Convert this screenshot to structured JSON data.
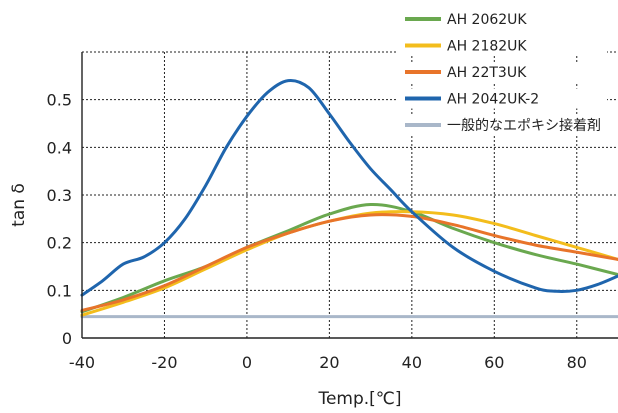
{
  "chart_data": {
    "type": "line",
    "title": "",
    "xlabel": "Temp.[℃]",
    "ylabel": "tan δ",
    "xlim": [
      -40,
      90
    ],
    "ylim": [
      0,
      0.6
    ],
    "x_ticks": [
      "-40",
      "-20",
      "0",
      "20",
      "40",
      "60",
      "80"
    ],
    "y_ticks": [
      "0",
      "0.1",
      "0.2",
      "0.3",
      "0.4",
      "0.5"
    ],
    "grid": true,
    "legend_position": "top-right",
    "series": [
      {
        "name": "AH 2062UK",
        "color": "#6aa84f",
        "points": [
          [
            -40,
            0.055
          ],
          [
            -30,
            0.085
          ],
          [
            -20,
            0.12
          ],
          [
            -10,
            0.15
          ],
          [
            0,
            0.19
          ],
          [
            10,
            0.225
          ],
          [
            20,
            0.26
          ],
          [
            30,
            0.28
          ],
          [
            40,
            0.265
          ],
          [
            50,
            0.23
          ],
          [
            60,
            0.2
          ],
          [
            70,
            0.175
          ],
          [
            80,
            0.155
          ],
          [
            90,
            0.133
          ]
        ]
      },
      {
        "name": "AH 2182UK",
        "color": "#f3bd1c",
        "points": [
          [
            -40,
            0.048
          ],
          [
            -30,
            0.075
          ],
          [
            -20,
            0.105
          ],
          [
            -10,
            0.145
          ],
          [
            0,
            0.185
          ],
          [
            10,
            0.22
          ],
          [
            20,
            0.245
          ],
          [
            30,
            0.262
          ],
          [
            40,
            0.265
          ],
          [
            50,
            0.258
          ],
          [
            60,
            0.24
          ],
          [
            70,
            0.215
          ],
          [
            80,
            0.19
          ],
          [
            90,
            0.165
          ]
        ]
      },
      {
        "name": "AH 22T3UK",
        "color": "#e8742a",
        "points": [
          [
            -40,
            0.058
          ],
          [
            -30,
            0.08
          ],
          [
            -20,
            0.11
          ],
          [
            -10,
            0.15
          ],
          [
            0,
            0.19
          ],
          [
            10,
            0.22
          ],
          [
            20,
            0.245
          ],
          [
            30,
            0.258
          ],
          [
            40,
            0.255
          ],
          [
            50,
            0.238
          ],
          [
            60,
            0.215
          ],
          [
            70,
            0.195
          ],
          [
            80,
            0.18
          ],
          [
            90,
            0.165
          ]
        ]
      },
      {
        "name": "AH 2042UK-2",
        "color": "#1f65ad",
        "points": [
          [
            -40,
            0.09
          ],
          [
            -35,
            0.12
          ],
          [
            -30,
            0.155
          ],
          [
            -25,
            0.17
          ],
          [
            -20,
            0.2
          ],
          [
            -15,
            0.25
          ],
          [
            -10,
            0.32
          ],
          [
            -5,
            0.4
          ],
          [
            0,
            0.465
          ],
          [
            5,
            0.515
          ],
          [
            10,
            0.54
          ],
          [
            15,
            0.525
          ],
          [
            20,
            0.47
          ],
          [
            25,
            0.41
          ],
          [
            30,
            0.355
          ],
          [
            35,
            0.31
          ],
          [
            40,
            0.265
          ],
          [
            50,
            0.19
          ],
          [
            60,
            0.14
          ],
          [
            70,
            0.105
          ],
          [
            75,
            0.098
          ],
          [
            80,
            0.1
          ],
          [
            85,
            0.112
          ],
          [
            90,
            0.13
          ]
        ]
      },
      {
        "name": "一般的なエポキシ接着剤",
        "color": "#a9b7c9",
        "points": [
          [
            -40,
            0.045
          ],
          [
            90,
            0.045
          ]
        ]
      }
    ]
  }
}
